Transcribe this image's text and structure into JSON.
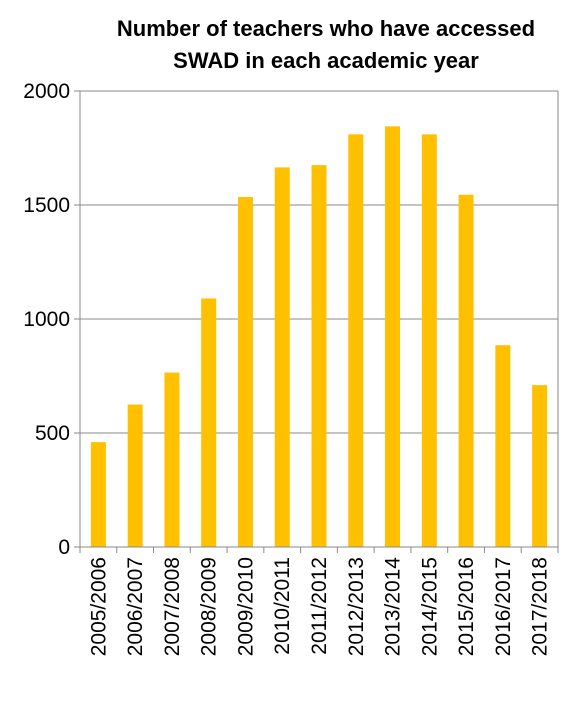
{
  "chart_data": {
    "type": "bar",
    "title_lines": [
      "Number of teachers who have accessed",
      "SWAD in each academic year"
    ],
    "categories": [
      "2005/2006",
      "2006/2007",
      "2007/2008",
      "2008/2009",
      "2009/2010",
      "2010/2011",
      "2011/2012",
      "2012/2013",
      "2013/2014",
      "2014/2015",
      "2015/2016",
      "2016/2017",
      "2017/2018"
    ],
    "values": [
      460,
      625,
      765,
      1090,
      1535,
      1665,
      1675,
      1810,
      1845,
      1810,
      1545,
      885,
      710
    ],
    "ylim": [
      0,
      2000
    ],
    "yticks": [
      0,
      500,
      1000,
      1500,
      2000
    ],
    "grid": true,
    "legend": "none",
    "bar_color": "#FFC000"
  }
}
